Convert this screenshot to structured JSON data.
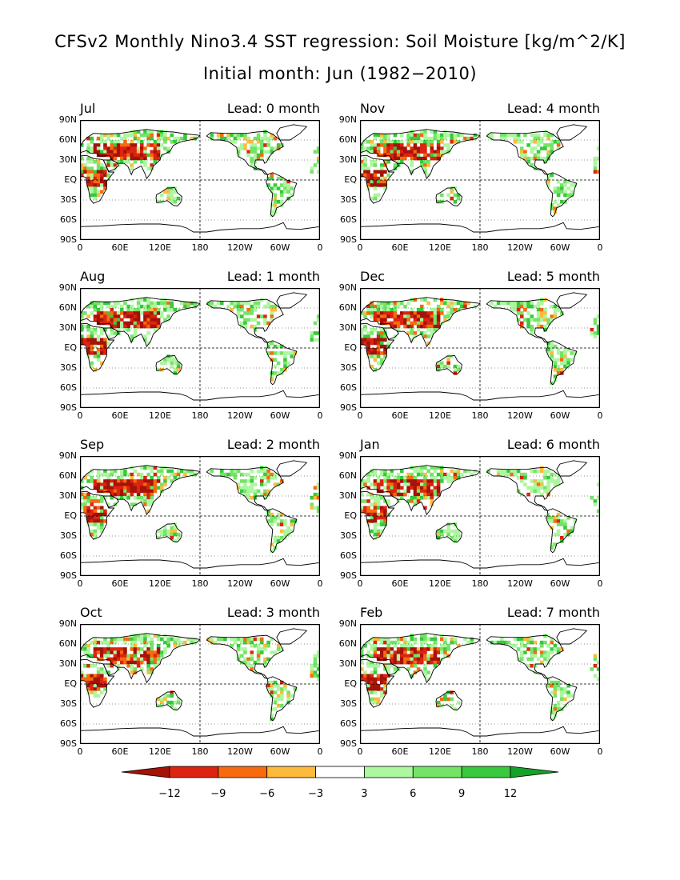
{
  "title_line1": "CFSv2 Monthly Nino3.4 SST regression: Soil Moisture [kg/m^2/K]",
  "title_line2": "Initial month: Jun (1982−2010)",
  "lat_labels": [
    "90N",
    "60N",
    "30N",
    "EQ",
    "30S",
    "60S",
    "90S"
  ],
  "lon_labels": [
    "0",
    "60E",
    "120E",
    "180",
    "120W",
    "60W",
    "0"
  ],
  "panels": [
    {
      "month": "Jul",
      "lead": "Lead: 0 month"
    },
    {
      "month": "Aug",
      "lead": "Lead: 1 month"
    },
    {
      "month": "Sep",
      "lead": "Lead: 2 month"
    },
    {
      "month": "Oct",
      "lead": "Lead: 3 month"
    },
    {
      "month": "Nov",
      "lead": "Lead: 4 month"
    },
    {
      "month": "Dec",
      "lead": "Lead: 5 month"
    },
    {
      "month": "Jan",
      "lead": "Lead: 6 month"
    },
    {
      "month": "Feb",
      "lead": "Lead: 7 month"
    }
  ],
  "colorbar": {
    "labels": [
      "−12",
      "−9",
      "−6",
      "−3",
      "3",
      "6",
      "9",
      "12"
    ],
    "colors": [
      "#a51208",
      "#dc2410",
      "#f76a0d",
      "#fdbb3d",
      "#ffffff",
      "#adf7a0",
      "#74e466",
      "#38c93d",
      "#16a12a"
    ]
  }
}
